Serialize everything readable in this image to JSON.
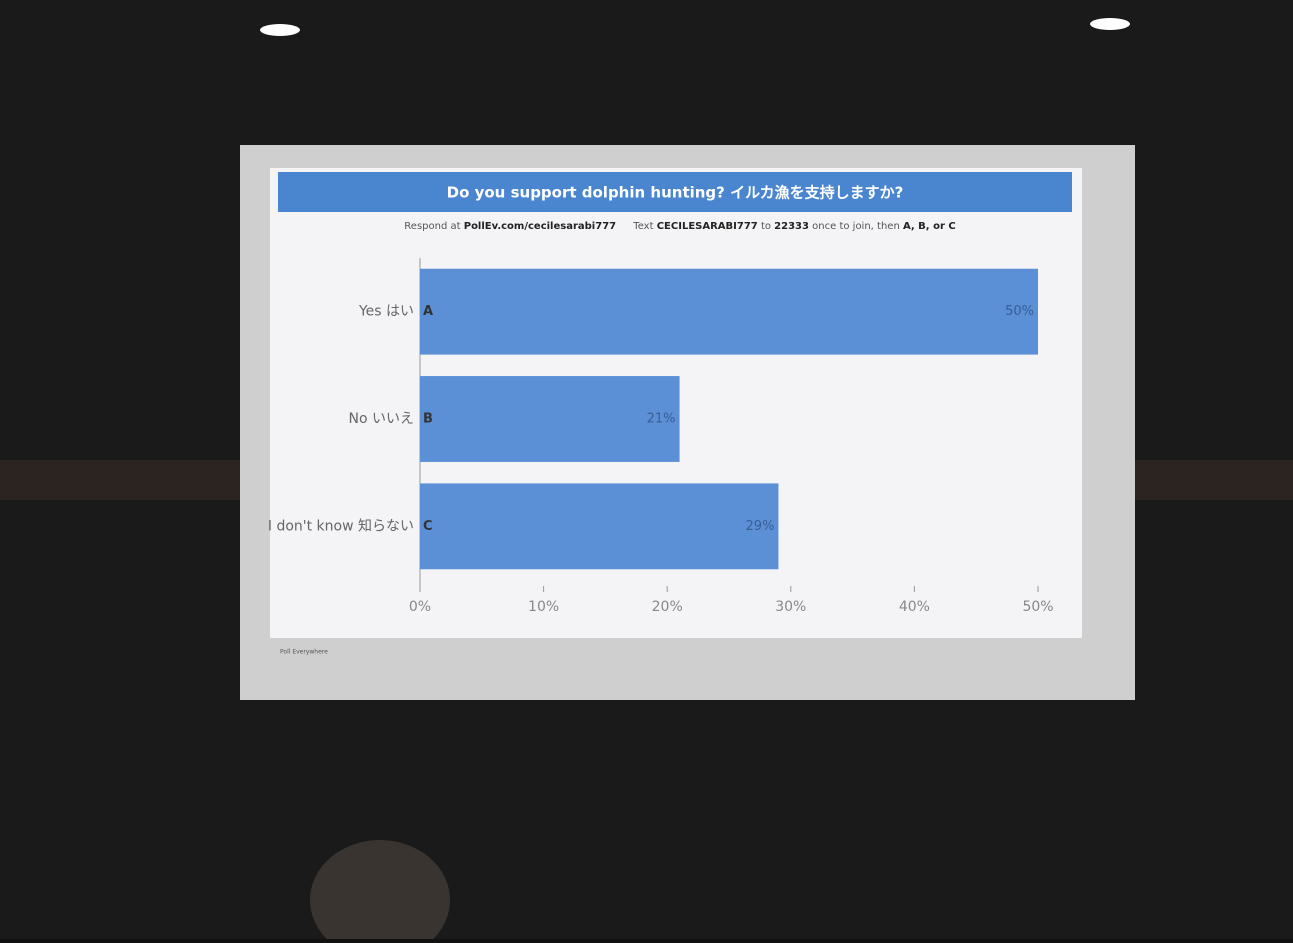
{
  "chart_data": {
    "type": "hbar",
    "title": "Do you support dolphin hunting? イルカ漁を支持しますか?",
    "instructions": {
      "respond": "Respond at",
      "url": "PollEv.com/cecilesarabi777",
      "text": "Text",
      "code": "CECILESARABI777",
      "to": "to",
      "number": "22333",
      "then": "once to join, then",
      "options": "A, B, or C"
    },
    "categories": [
      "Yes はい",
      "No いいえ",
      "I don't know 知らない"
    ],
    "letters": [
      "A",
      "B",
      "C"
    ],
    "values": [
      50,
      21,
      29
    ],
    "value_labels": [
      "50%",
      "21%",
      "29%"
    ],
    "color": "#5b8fd6",
    "xlim": [
      0,
      50
    ],
    "xticks": [
      {
        "value": 0,
        "label": "0%"
      },
      {
        "value": 10,
        "label": "10%"
      },
      {
        "value": 20,
        "label": "20%"
      },
      {
        "value": 30,
        "label": "30%"
      },
      {
        "value": 40,
        "label": "40%"
      },
      {
        "value": 50,
        "label": "50%"
      }
    ],
    "footer": "Poll Everywhere"
  }
}
